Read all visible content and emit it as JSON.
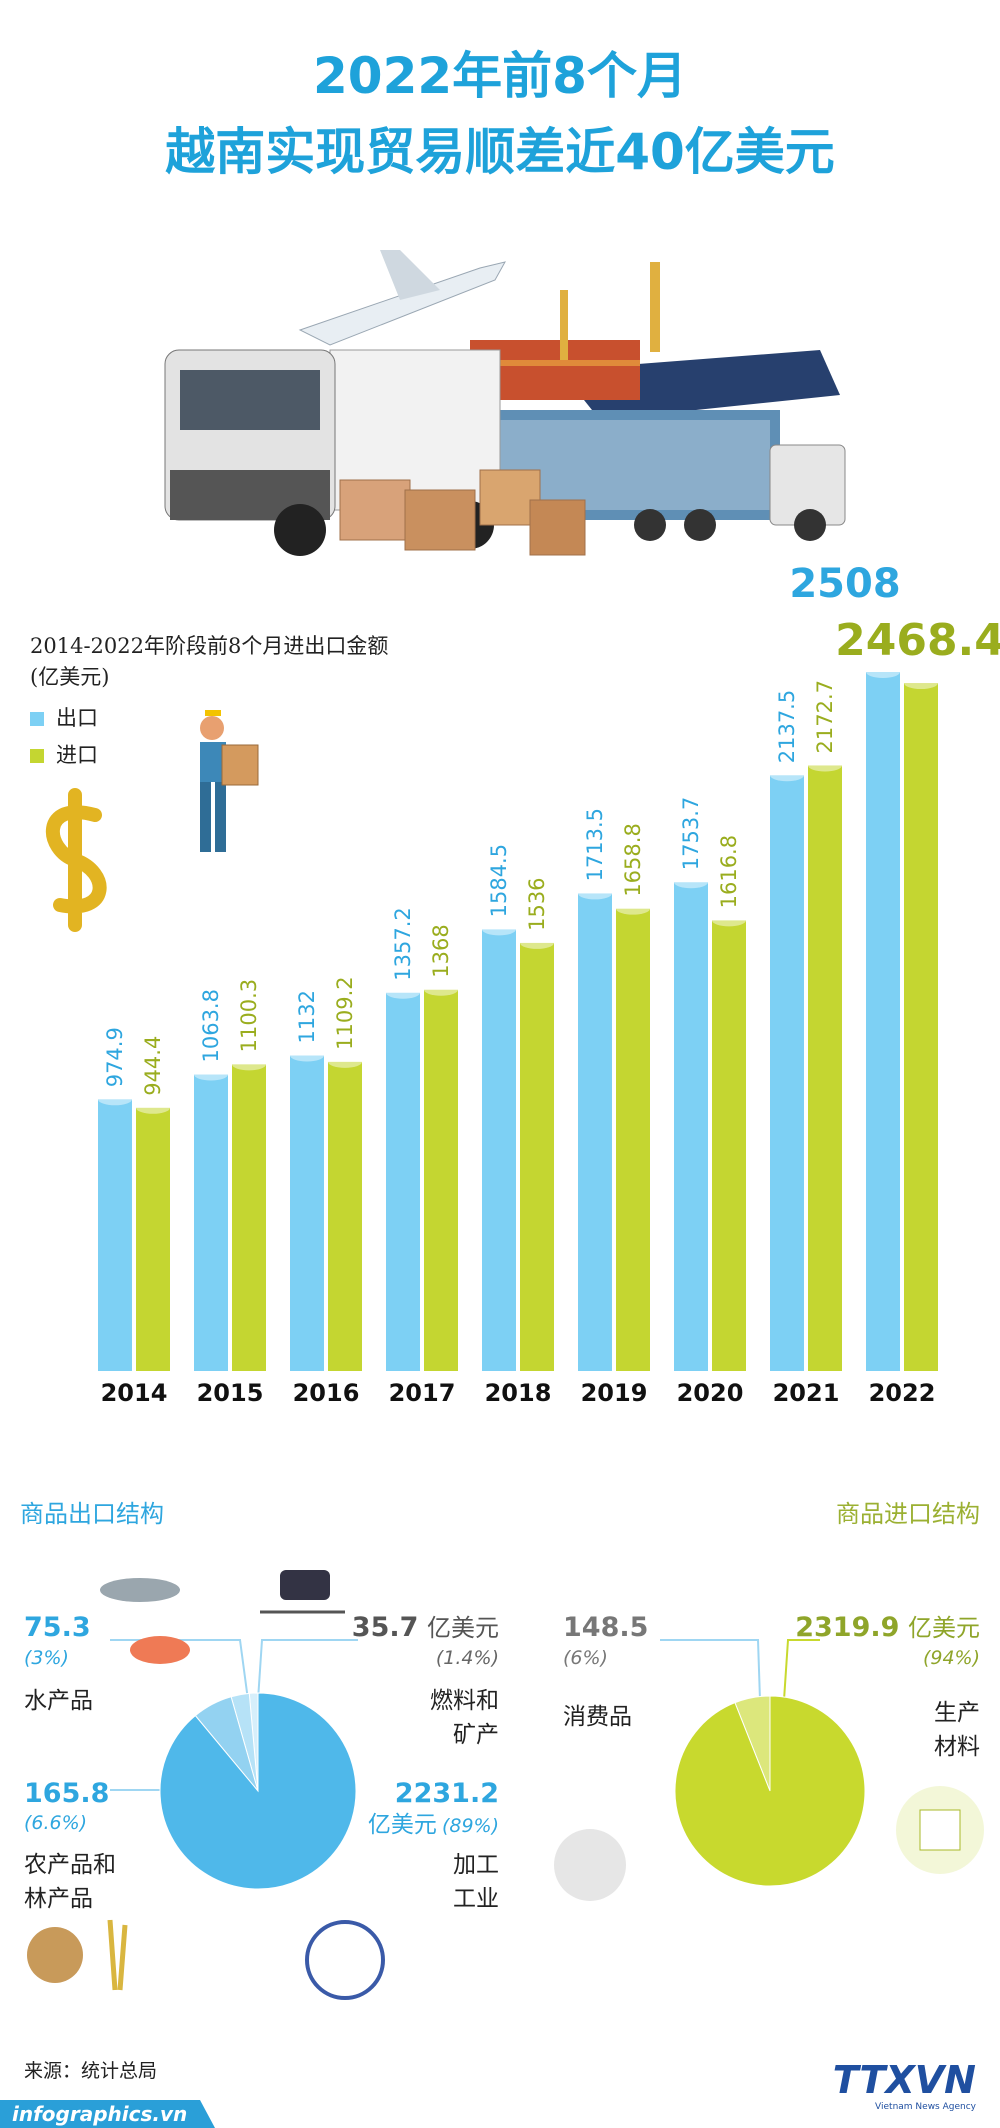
{
  "title": "2022年前8个月",
  "subtitle": "越南实现贸易顺差近40亿美元",
  "chart_data": [
    {
      "type": "bar",
      "title": "2014-2022年阶段前8个月进出口金额",
      "unit": "(亿美元)",
      "categories": [
        "2014",
        "2015",
        "2016",
        "2017",
        "2018",
        "2019",
        "2020",
        "2021",
        "2022"
      ],
      "series": [
        {
          "name": "出口",
          "color": "#7dd0f4",
          "values": [
            974.9,
            1063.8,
            1132,
            1357.2,
            1584.5,
            1713.5,
            1753.7,
            2137.5,
            2508
          ]
        },
        {
          "name": "进口",
          "color": "#c4d631",
          "values": [
            944.4,
            1100.3,
            1109.2,
            1368,
            1536,
            1658.8,
            1616.8,
            2172.7,
            2468.4
          ]
        }
      ]
    },
    {
      "type": "pie",
      "title": "商品出口结构",
      "unit": "亿美元",
      "categories": [
        "燃料和矿产",
        "水产品",
        "农产品和林产品",
        "加工工业"
      ],
      "values": [
        35.7,
        75.3,
        165.8,
        2231.2
      ],
      "percent_labels": [
        "(1.4%)",
        "(3%)",
        "(6.6%)",
        "(89%)"
      ],
      "colors": [
        "#d6effb",
        "#b6e2f7",
        "#93d2f1",
        "#4fb8ea"
      ]
    },
    {
      "type": "pie",
      "title": "商品进口结构",
      "unit": "亿美元",
      "categories": [
        "消费品",
        "生产材料"
      ],
      "values": [
        148.5,
        2319.9
      ],
      "percent_labels": [
        "(6%)",
        "(94%)"
      ],
      "colors": [
        "#dce77c",
        "#c8d92e"
      ]
    }
  ],
  "footer": {
    "source": "来源：统计总局",
    "site": "infographics.vn",
    "logo": "TTXVN",
    "agency": "Vietnam News Agency"
  }
}
